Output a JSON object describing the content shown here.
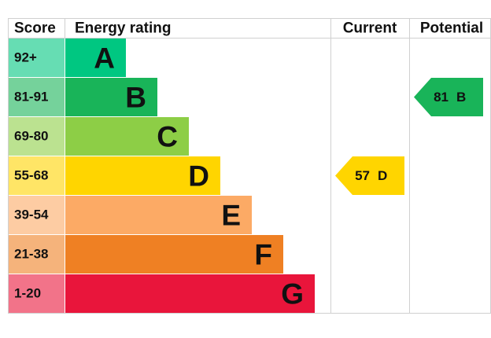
{
  "chart_data": {
    "type": "epc-rating",
    "headers": {
      "score": "Score",
      "rating": "Energy rating",
      "current": "Current",
      "potential": "Potential"
    },
    "bands": [
      {
        "letter": "A",
        "score": "92+",
        "color": "#00c781",
        "light": "#66ddb3"
      },
      {
        "letter": "B",
        "score": "81-91",
        "color": "#19b459",
        "light": "#75d29b"
      },
      {
        "letter": "C",
        "score": "69-80",
        "color": "#8dce46",
        "light": "#bbe290"
      },
      {
        "letter": "D",
        "score": "55-68",
        "color": "#ffd500",
        "light": "#ffe566"
      },
      {
        "letter": "E",
        "score": "39-54",
        "color": "#fcaa65",
        "light": "#fdcca3"
      },
      {
        "letter": "F",
        "score": "21-38",
        "color": "#ef8023",
        "light": "#f5b37b"
      },
      {
        "letter": "G",
        "score": "1-20",
        "color": "#e9153b",
        "light": "#f27389"
      }
    ],
    "current": {
      "value": 57,
      "label": "D"
    },
    "potential": {
      "value": 81,
      "label": "B"
    }
  }
}
